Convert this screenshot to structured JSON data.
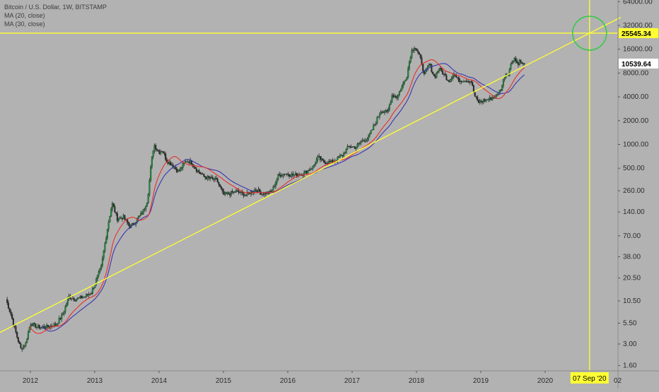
{
  "legend": {
    "symbol_line": "Bitcoin / U.S. Dollar, 1W, BITSTAMP",
    "ma1_label": "MA (20, close)",
    "ma2_label": "MA (30, close)"
  },
  "colors": {
    "background": "#b2b2b2",
    "candle_up": "#1e8c3c",
    "candle_down": "#2a2a2a",
    "ma20": "#e8312a",
    "ma30": "#3b35b0",
    "trendline": "#ffff33",
    "circle": "#2ecc40",
    "axis_text": "#2d2d2d"
  },
  "chart_data": {
    "type": "candlestick",
    "title": "Bitcoin / U.S. Dollar, 1W, BITSTAMP",
    "scale": "log",
    "x_tick_labels": [
      "2012",
      "2013",
      "2014",
      "2015",
      "2016",
      "2017",
      "2018",
      "2019",
      "2020"
    ],
    "x_axis_clipped_label": "02",
    "y_tick_labels": [
      "64000.00",
      "32000.00",
      "16000.00",
      "8000.00",
      "4000.00",
      "2000.00",
      "1000.00",
      "500.00",
      "260.00",
      "140.00",
      "70.00",
      "38.00",
      "20.50",
      "10.50",
      "5.50",
      "3.00",
      "1.60"
    ],
    "y_ticks": [
      64000,
      32000,
      16000,
      8000,
      4000,
      2000,
      1000,
      500,
      260,
      140,
      70,
      38,
      20.5,
      10.5,
      5.5,
      3,
      1.6
    ],
    "ylim": [
      1.4,
      67000
    ],
    "xlim": [
      2011.55,
      2020.95
    ],
    "price_label": "10539.64",
    "last_price": 10539.64,
    "horizontal_line_label": "25545.34",
    "horizontal_line_value": 25545.34,
    "vertical_line_label": "07 Sep '20",
    "vertical_line_date": 2020.69,
    "trendline_points": [
      {
        "x": 2011.6,
        "y": 4.5
      },
      {
        "x": 2020.69,
        "y": 25545.34
      }
    ],
    "price_path": [
      {
        "x": 2011.62,
        "y": 11
      },
      {
        "x": 2011.7,
        "y": 7
      },
      {
        "x": 2011.78,
        "y": 4
      },
      {
        "x": 2011.85,
        "y": 2.6
      },
      {
        "x": 2011.93,
        "y": 3.1
      },
      {
        "x": 2012.0,
        "y": 5.5
      },
      {
        "x": 2012.1,
        "y": 4.9
      },
      {
        "x": 2012.25,
        "y": 4.9
      },
      {
        "x": 2012.4,
        "y": 5.3
      },
      {
        "x": 2012.5,
        "y": 7
      },
      {
        "x": 2012.6,
        "y": 12
      },
      {
        "x": 2012.7,
        "y": 11
      },
      {
        "x": 2012.85,
        "y": 12
      },
      {
        "x": 2012.95,
        "y": 13.5
      },
      {
        "x": 2013.1,
        "y": 28
      },
      {
        "x": 2013.2,
        "y": 90
      },
      {
        "x": 2013.27,
        "y": 180
      },
      {
        "x": 2013.35,
        "y": 115
      },
      {
        "x": 2013.45,
        "y": 120
      },
      {
        "x": 2013.55,
        "y": 90
      },
      {
        "x": 2013.65,
        "y": 110
      },
      {
        "x": 2013.75,
        "y": 140
      },
      {
        "x": 2013.82,
        "y": 200
      },
      {
        "x": 2013.88,
        "y": 600
      },
      {
        "x": 2013.92,
        "y": 1000
      },
      {
        "x": 2014.0,
        "y": 800
      },
      {
        "x": 2014.05,
        "y": 850
      },
      {
        "x": 2014.12,
        "y": 620
      },
      {
        "x": 2014.2,
        "y": 560
      },
      {
        "x": 2014.3,
        "y": 450
      },
      {
        "x": 2014.42,
        "y": 620
      },
      {
        "x": 2014.5,
        "y": 600
      },
      {
        "x": 2014.58,
        "y": 480
      },
      {
        "x": 2014.7,
        "y": 390
      },
      {
        "x": 2014.8,
        "y": 370
      },
      {
        "x": 2014.9,
        "y": 350
      },
      {
        "x": 2015.0,
        "y": 230
      },
      {
        "x": 2015.1,
        "y": 240
      },
      {
        "x": 2015.2,
        "y": 255
      },
      {
        "x": 2015.35,
        "y": 230
      },
      {
        "x": 2015.5,
        "y": 270
      },
      {
        "x": 2015.6,
        "y": 240
      },
      {
        "x": 2015.75,
        "y": 250
      },
      {
        "x": 2015.85,
        "y": 400
      },
      {
        "x": 2015.95,
        "y": 430
      },
      {
        "x": 2016.1,
        "y": 410
      },
      {
        "x": 2016.25,
        "y": 430
      },
      {
        "x": 2016.4,
        "y": 530
      },
      {
        "x": 2016.47,
        "y": 690
      },
      {
        "x": 2016.55,
        "y": 600
      },
      {
        "x": 2016.7,
        "y": 600
      },
      {
        "x": 2016.85,
        "y": 730
      },
      {
        "x": 2016.95,
        "y": 950
      },
      {
        "x": 2017.05,
        "y": 920
      },
      {
        "x": 2017.15,
        "y": 1100
      },
      {
        "x": 2017.25,
        "y": 1200
      },
      {
        "x": 2017.35,
        "y": 1800
      },
      {
        "x": 2017.45,
        "y": 2700
      },
      {
        "x": 2017.55,
        "y": 2500
      },
      {
        "x": 2017.62,
        "y": 4200
      },
      {
        "x": 2017.7,
        "y": 4000
      },
      {
        "x": 2017.78,
        "y": 5500
      },
      {
        "x": 2017.85,
        "y": 7500
      },
      {
        "x": 2017.92,
        "y": 15000
      },
      {
        "x": 2017.97,
        "y": 17500
      },
      {
        "x": 2018.03,
        "y": 14000
      },
      {
        "x": 2018.08,
        "y": 11000
      },
      {
        "x": 2018.12,
        "y": 7500
      },
      {
        "x": 2018.2,
        "y": 10500
      },
      {
        "x": 2018.28,
        "y": 7000
      },
      {
        "x": 2018.35,
        "y": 9200
      },
      {
        "x": 2018.42,
        "y": 7800
      },
      {
        "x": 2018.5,
        "y": 6400
      },
      {
        "x": 2018.58,
        "y": 7800
      },
      {
        "x": 2018.65,
        "y": 6500
      },
      {
        "x": 2018.75,
        "y": 6500
      },
      {
        "x": 2018.85,
        "y": 6300
      },
      {
        "x": 2018.9,
        "y": 4200
      },
      {
        "x": 2018.96,
        "y": 3400
      },
      {
        "x": 2019.05,
        "y": 3600
      },
      {
        "x": 2019.15,
        "y": 3800
      },
      {
        "x": 2019.25,
        "y": 4100
      },
      {
        "x": 2019.32,
        "y": 5200
      },
      {
        "x": 2019.38,
        "y": 7800
      },
      {
        "x": 2019.43,
        "y": 8000
      },
      {
        "x": 2019.48,
        "y": 11000
      },
      {
        "x": 2019.52,
        "y": 12500
      },
      {
        "x": 2019.57,
        "y": 10500
      },
      {
        "x": 2019.61,
        "y": 11500
      },
      {
        "x": 2019.65,
        "y": 10000
      },
      {
        "x": 2019.69,
        "y": 10539.64
      }
    ]
  }
}
